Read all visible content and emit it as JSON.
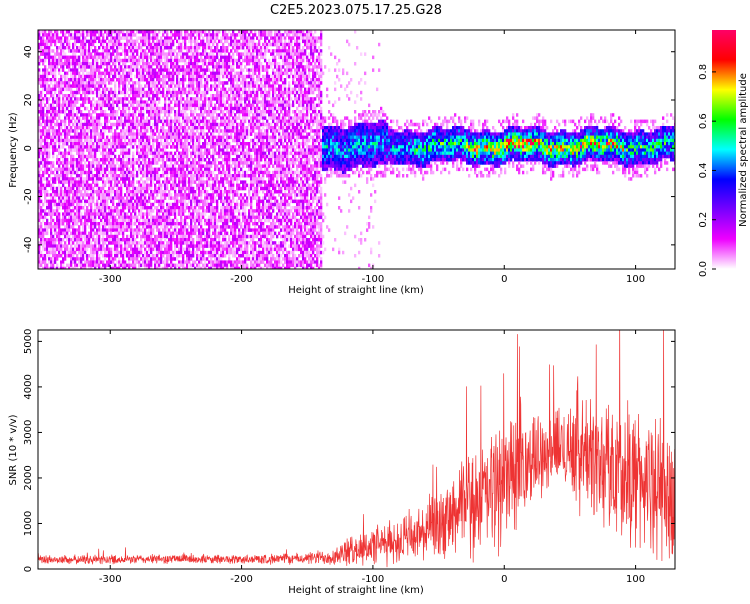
{
  "title": "C2E5.2023.075.17.25.G28",
  "chart_data": [
    {
      "type": "heatmap",
      "xlabel": "Height of straight line (km)",
      "ylabel": "Frequency (Hz)",
      "xlim": [
        -355,
        130
      ],
      "ylim": [
        -50,
        49
      ],
      "xticks": [
        "-300",
        "-200",
        "-100",
        "0",
        "100"
      ],
      "yticks": [
        "-40",
        "-20",
        "0",
        "20",
        "40"
      ],
      "colorbar": {
        "label": "Normalized spectral amplitude",
        "range": [
          0,
          0.97
        ],
        "ticks": [
          "0.0",
          "0.2",
          "0.4",
          "0.6",
          "0.8"
        ],
        "colors": [
          "#ffffff",
          "#ee00ff",
          "#7700ff",
          "#0000ff",
          "#00ffff",
          "#00ff00",
          "#ffff00",
          "#ff0000",
          "#ff0066"
        ]
      },
      "regions": [
        {
          "x_range": [
            -355,
            -140
          ],
          "freq_range": [
            -50,
            49
          ],
          "amplitude": 0.1,
          "kind": "broadband noise"
        },
        {
          "x_range": [
            -140,
            130
          ],
          "center_freq": 1.5,
          "half_width_hz": 7,
          "peak_amplitude": 0.9,
          "kind": "narrow signal band"
        }
      ],
      "grid": false
    },
    {
      "type": "line",
      "xlabel": "Height of straight line (km)",
      "ylabel": "SNR (10 * v/v)",
      "xlim": [
        -355,
        130
      ],
      "ylim": [
        0,
        5250
      ],
      "xticks": [
        "-300",
        "-200",
        "-100",
        "0",
        "100"
      ],
      "yticks": [
        "0",
        "1000",
        "2000",
        "3000",
        "4000",
        "5000"
      ],
      "color": "#ee3333",
      "series": [
        {
          "x": [
            -350,
            -300,
            -250,
            -200,
            -150,
            -130,
            -110,
            -90,
            -70,
            -50,
            -40,
            -30,
            -20,
            -10,
            0,
            10,
            20,
            30,
            40,
            50,
            60,
            70,
            80,
            90,
            100,
            110,
            120,
            130
          ],
          "y": [
            200,
            210,
            220,
            210,
            230,
            280,
            450,
            550,
            700,
            900,
            1100,
            1400,
            1500,
            1700,
            1950,
            2200,
            2400,
            2600,
            2650,
            2700,
            2550,
            2400,
            2300,
            2150,
            2050,
            1850,
            1750,
            1600
          ],
          "spread": [
            120,
            120,
            120,
            120,
            150,
            250,
            450,
            550,
            700,
            900,
            1000,
            1300,
            1400,
            1600,
            1700,
            1500,
            1200,
            1000,
            1000,
            1300,
            1500,
            1600,
            1700,
            1800,
            1800,
            1800,
            1800,
            1800
          ]
        }
      ],
      "grid": false
    }
  ]
}
